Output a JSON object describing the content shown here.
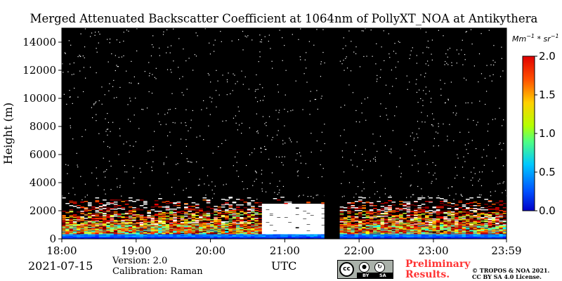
{
  "title": "Merged Attenuated Backscatter Coefficient at 1064nm of PollyXT_NOA at Antikythera",
  "chart_data": {
    "type": "heatmap",
    "title": "Merged Attenuated Backscatter Coefficient at 1064nm of PollyXT_NOA at Antikythera",
    "ylabel": "Height (m)",
    "xlabel": "UTC",
    "x_ticks": [
      "18:00",
      "19:00",
      "20:00",
      "21:00",
      "22:00",
      "23:00",
      "23:59"
    ],
    "x_range": [
      "18:00",
      "23:59"
    ],
    "y_ticks": [
      0,
      2000,
      4000,
      6000,
      8000,
      10000,
      12000,
      14000
    ],
    "y_range": [
      0,
      15000
    ],
    "colorbar": {
      "unit": "Mm^-1 * sr^-1",
      "unit_display": {
        "base1": "Mm",
        "exp1": "−1",
        "mid": " * sr",
        "exp2": "−1"
      },
      "range": [
        0.0,
        2.0
      ],
      "ticks": [
        "0.0",
        "0.5",
        "1.0",
        "1.5",
        "2.0"
      ],
      "colormap": "jet",
      "placement": "right"
    },
    "data_gap": {
      "start": "21:32",
      "end": "21:43"
    },
    "layers": [
      {
        "description": "surface layer",
        "height_range_m": [
          0,
          300
        ],
        "value": 0.3
      },
      {
        "description": "aerosol layer",
        "height_range_m": [
          300,
          2500
        ],
        "value_range": [
          0.8,
          2.0
        ]
      },
      {
        "description": "dense layer",
        "time_range": [
          "20:40",
          "21:30"
        ],
        "height_range_m": [
          200,
          2500
        ],
        "value": "above 2.0"
      }
    ],
    "grid": false,
    "legend": "colorbar-right"
  },
  "info": {
    "date": "2021-07-15",
    "version": "Version: 2.0",
    "calibration": "Calibration: Raman",
    "utc_label": "UTC"
  },
  "license": {
    "badge_cc": "cc",
    "badge_by": "BY",
    "badge_sa": "SA",
    "preliminary_line1": "Preliminary",
    "preliminary_line2": "Results.",
    "copyright_line1": "© TROPOS & NOA 2021.",
    "copyright_line2": "CC BY SA 4.0 License."
  }
}
